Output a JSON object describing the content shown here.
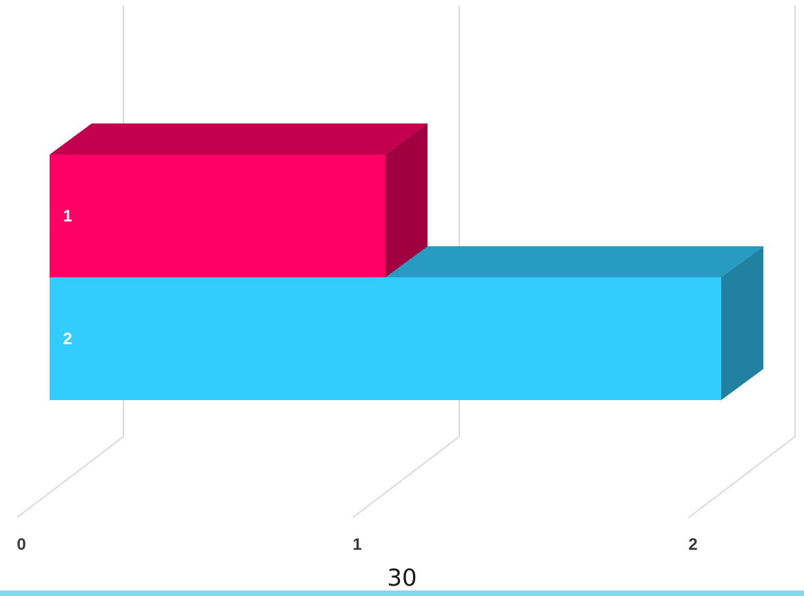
{
  "chart_data": {
    "type": "bar",
    "orientation": "horizontal",
    "three_d": true,
    "categories": [
      "1",
      "2"
    ],
    "values": [
      1,
      2
    ],
    "bar_colors": [
      "#ff0066",
      "#33ccff"
    ],
    "data_labels": [
      "1",
      "2"
    ],
    "title": "",
    "xlabel": "",
    "ylabel": "",
    "xlim": [
      0,
      2
    ],
    "x_ticks": [
      "0",
      "1",
      "2"
    ],
    "grid": true,
    "legend": "none"
  },
  "page": {
    "number": "30",
    "footer_color": "#7fdaf0"
  }
}
